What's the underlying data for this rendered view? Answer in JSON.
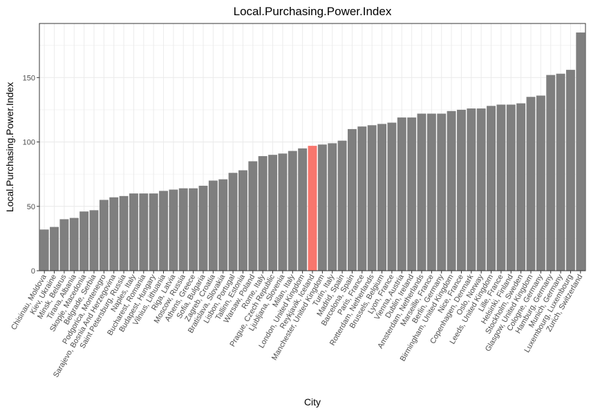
{
  "chart_data": {
    "type": "bar",
    "title": "Local.Purchasing.Power.Index",
    "xlabel": "City",
    "ylabel": "Local.Purchasing.Power.Index",
    "ylim": [
      0,
      192
    ],
    "yticks": [
      0,
      50,
      100,
      150
    ],
    "grid": true,
    "bar_color": "#7f7f7f",
    "highlight_color": "#f8766d",
    "highlight_category": "Reykjavik, Iceland",
    "categories": [
      "Chisinau, Moldova",
      "Kiev, Ukraine",
      "Minsk, Belarus",
      "Tirana, Albania",
      "Skopje, Macedonia",
      "Belgrade, Serbia",
      "Podgorica, Montenegro",
      "Sarajevo, Bosnia And Herzegovina",
      "Saint Petersburg, Russia",
      "Naples, Italy",
      "Bucharest, Romania",
      "Budapest, Hungary",
      "Vilnius, Lithuania",
      "Riga, Latvia",
      "Moscow, Russia",
      "Athens, Greece",
      "Sofia, Bulgaria",
      "Zagreb, Croatia",
      "Bratislava, Slovakia",
      "Lisbon, Portugal",
      "Tallinn, Estonia",
      "Warsaw, Poland",
      "Rome, Italy",
      "Prague, Czech Republic",
      "Ljubljana, Slovenia",
      "Milan, Italy",
      "London, United Kingdom",
      "Reykjavik, Iceland",
      "Manchester, United Kingdom",
      "Turin, Italy",
      "Madrid, Spain",
      "Barcelona, Spain",
      "Paris, France",
      "Rotterdam, Netherlands",
      "Brussels, Belgium",
      "Lyon, France",
      "Vienna, Austria",
      "Dublin, Ireland",
      "Amsterdam, Netherlands",
      "Marseille, France",
      "Berlin, Germany",
      "Birmingham, United Kingdom",
      "Nice, France",
      "Copenhagen, Denmark",
      "Oslo, Norway",
      "Leeds, United Kingdom",
      "Lille, France",
      "Helsinki, Finland",
      "Stockholm, Sweden",
      "Glasgow, United Kingdom",
      "Cologne, Germany",
      "Hamburg, Germany",
      "Munich, Germany",
      "Luxembourg, Luxembourg",
      "Zurich, Switzerland"
    ],
    "values": [
      32,
      34,
      40,
      41,
      46,
      47,
      55,
      57,
      58,
      60,
      60,
      60,
      62,
      63,
      64,
      64,
      66,
      70,
      71,
      76,
      78,
      85,
      89,
      90,
      91,
      93,
      95,
      97,
      98,
      99,
      101,
      110,
      112,
      113,
      114,
      115,
      119,
      119,
      122,
      122,
      122,
      124,
      125,
      126,
      126,
      128,
      129,
      129,
      130,
      135,
      136,
      152,
      153,
      156,
      185
    ]
  }
}
